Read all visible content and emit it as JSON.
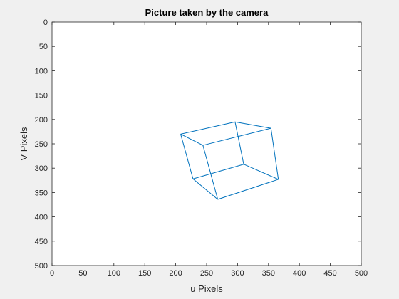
{
  "chart_data": {
    "type": "line",
    "title": "Picture taken by the camera",
    "xlabel": "u Pixels",
    "ylabel": "V Pixels",
    "xlim": [
      0,
      500
    ],
    "ylim": [
      0,
      500
    ],
    "y_reversed": true,
    "xticks": [
      0,
      50,
      100,
      150,
      200,
      250,
      300,
      350,
      400,
      450,
      500
    ],
    "yticks": [
      0,
      50,
      100,
      150,
      200,
      250,
      300,
      350,
      400,
      450,
      500
    ],
    "grid": false,
    "line_color": "#0072bd",
    "series": [
      {
        "values": "wireframe cube edges as [u, v] segments",
        "segments": [
          [
            [
              208,
              230
            ],
            [
              296,
              205
            ]
          ],
          [
            [
              296,
              205
            ],
            [
              354,
              218
            ]
          ],
          [
            [
              354,
              218
            ],
            [
              244,
              253
            ]
          ],
          [
            [
              244,
              253
            ],
            [
              208,
              230
            ]
          ],
          [
            [
              228,
              322
            ],
            [
              310,
              292
            ]
          ],
          [
            [
              310,
              292
            ],
            [
              366,
              323
            ]
          ],
          [
            [
              366,
              323
            ],
            [
              268,
              364
            ]
          ],
          [
            [
              268,
              364
            ],
            [
              228,
              322
            ]
          ],
          [
            [
              208,
              230
            ],
            [
              228,
              322
            ]
          ],
          [
            [
              296,
              205
            ],
            [
              310,
              292
            ]
          ],
          [
            [
              354,
              218
            ],
            [
              366,
              323
            ]
          ],
          [
            [
              244,
              253
            ],
            [
              268,
              364
            ]
          ]
        ]
      }
    ]
  }
}
